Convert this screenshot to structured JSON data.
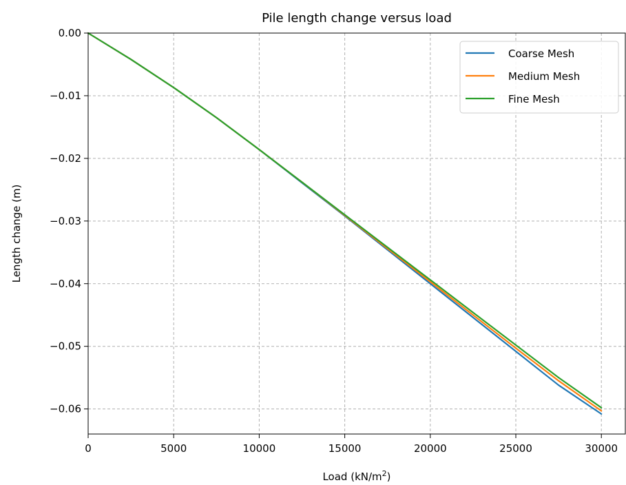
{
  "chart_data": {
    "type": "line",
    "title": "Pile length change versus load",
    "xlabel": "Load (kN/m",
    "xlabel_sup": "2",
    "xlabel_suffix": ")",
    "ylabel": "Length change (m)",
    "xlim": [
      0,
      31400
    ],
    "ylim": [
      -0.064,
      0.0
    ],
    "xticks": [
      0,
      5000,
      10000,
      15000,
      20000,
      25000,
      30000
    ],
    "xtick_labels": [
      "0",
      "5000",
      "10000",
      "15000",
      "20000",
      "25000",
      "30000"
    ],
    "yticks": [
      0.0,
      -0.01,
      -0.02,
      -0.03,
      -0.04,
      -0.05,
      -0.06
    ],
    "ytick_labels": [
      "0.00",
      "−0.01",
      "−0.02",
      "−0.03",
      "−0.04",
      "−0.05",
      "−0.06"
    ],
    "grid": true,
    "legend_position": "top-right",
    "x": [
      0,
      2500,
      5000,
      7500,
      10000,
      12500,
      15000,
      17500,
      20000,
      22500,
      25000,
      27500,
      30000
    ],
    "series": [
      {
        "name": "Coarse Mesh",
        "color": "#1f77b4",
        "values": [
          0.0,
          -0.0042,
          -0.0087,
          -0.0135,
          -0.0186,
          -0.0239,
          -0.0292,
          -0.0346,
          -0.04,
          -0.0454,
          -0.0508,
          -0.0562,
          -0.0608
        ]
      },
      {
        "name": "Medium Mesh",
        "color": "#ff7f0e",
        "values": [
          0.0,
          -0.0042,
          -0.0087,
          -0.0135,
          -0.0186,
          -0.0238,
          -0.0291,
          -0.0344,
          -0.0397,
          -0.045,
          -0.0503,
          -0.0555,
          -0.0603
        ]
      },
      {
        "name": "Fine Mesh",
        "color": "#2ca02c",
        "values": [
          0.0,
          -0.0042,
          -0.0087,
          -0.0135,
          -0.0186,
          -0.0238,
          -0.029,
          -0.0342,
          -0.0394,
          -0.0446,
          -0.0498,
          -0.055,
          -0.0598
        ]
      }
    ]
  }
}
